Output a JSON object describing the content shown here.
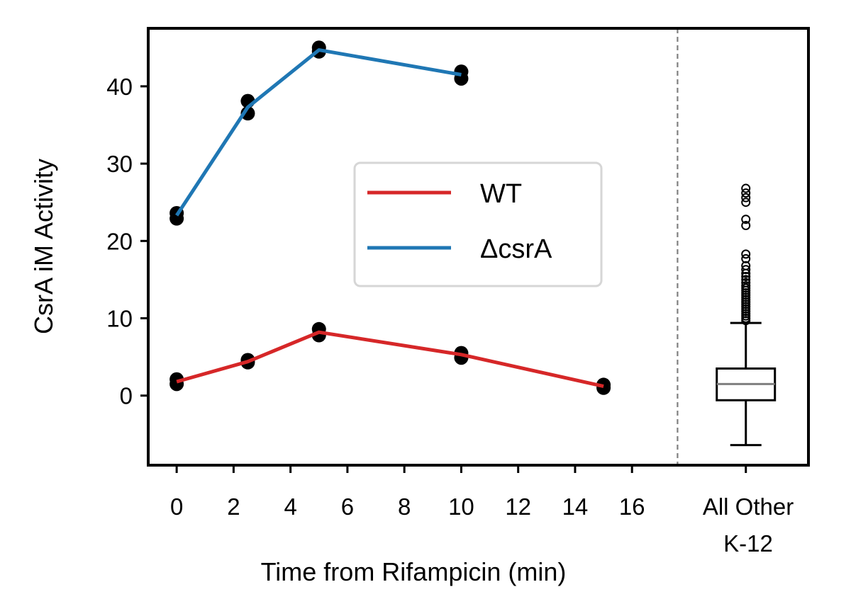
{
  "chart_data": {
    "type": "line",
    "xlabel": "Time from Rifampicin (min)",
    "ylabel": "CsrA iM Activity",
    "xlim": [
      -1,
      22.2
    ],
    "ylim": [
      -9,
      47.5
    ],
    "x_ticks": [
      0,
      2,
      4,
      6,
      8,
      10,
      12,
      14,
      16
    ],
    "y_ticks": [
      0,
      10,
      20,
      30,
      40
    ],
    "separator_x": 17.6,
    "category_label": [
      "All Other",
      "K-12"
    ],
    "category_x": 20,
    "legend": {
      "placement": "center",
      "entries": [
        "WT",
        "ΔcsrA"
      ]
    },
    "series": [
      {
        "name": "WT",
        "color": "#d62728",
        "x": [
          0,
          2.5,
          5,
          10,
          15
        ],
        "y": [
          1.8,
          4.4,
          8.2,
          5.3,
          1.2
        ],
        "replicates": [
          [
            1.5,
            2.1
          ],
          [
            4.3,
            4.6
          ],
          [
            7.8,
            8.6
          ],
          [
            4.9,
            5.5
          ],
          [
            1.0,
            1.4
          ]
        ]
      },
      {
        "name": "ΔcsrA",
        "color": "#1f77b4",
        "x": [
          0,
          2.5,
          5,
          10
        ],
        "y": [
          23.3,
          37.3,
          44.7,
          41.5
        ],
        "replicates": [
          [
            22.9,
            23.6
          ],
          [
            36.5,
            38.1
          ],
          [
            44.5,
            45.0
          ],
          [
            41.0,
            41.9
          ]
        ]
      }
    ],
    "boxplot": {
      "label": "All Other K-12",
      "whisker_low": -6.4,
      "q1": -0.6,
      "median": 1.5,
      "q3": 3.5,
      "whisker_high": 9.4,
      "outliers": [
        9.7,
        10.0,
        10.3,
        10.6,
        10.9,
        11.2,
        11.5,
        11.8,
        12.1,
        12.4,
        12.7,
        13.0,
        13.3,
        13.6,
        13.9,
        14.2,
        14.6,
        15.0,
        15.4,
        15.8,
        16.3,
        16.8,
        17.7,
        18.3,
        22.0,
        22.8,
        25.0,
        25.6,
        26.2,
        26.8
      ]
    }
  }
}
